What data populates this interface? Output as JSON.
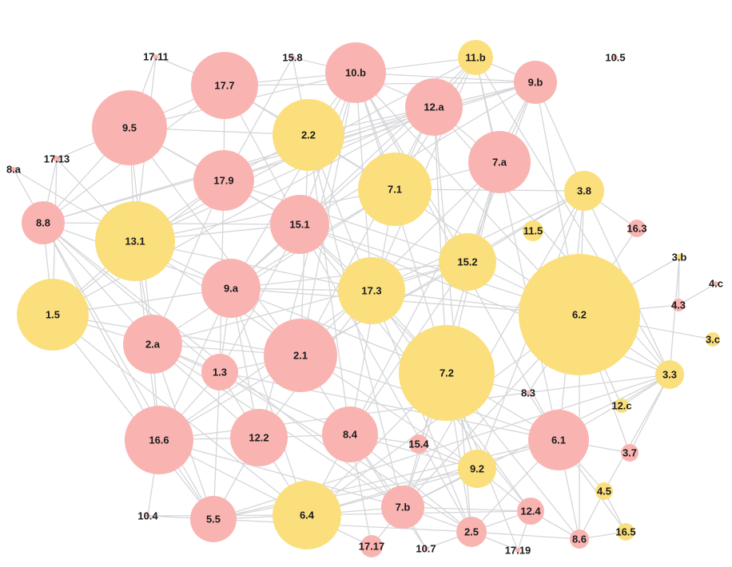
{
  "colors": {
    "pink": "#f9b4b2",
    "yellow": "#fbdf7c",
    "edge": "#d5d6d9",
    "label": "#1b1b1b",
    "background": "#ffffff"
  },
  "nodes": [
    {
      "id": "17.11",
      "group": "pink"
    },
    {
      "id": "15.8",
      "group": "pink"
    },
    {
      "id": "10.b",
      "group": "pink"
    },
    {
      "id": "11.b",
      "group": "yellow"
    },
    {
      "id": "9.b",
      "group": "pink"
    },
    {
      "id": "10.5",
      "group": "pink"
    },
    {
      "id": "17.7",
      "group": "pink"
    },
    {
      "id": "9.5",
      "group": "pink"
    },
    {
      "id": "2.2",
      "group": "yellow"
    },
    {
      "id": "12.a",
      "group": "pink"
    },
    {
      "id": "17.13",
      "group": "pink"
    },
    {
      "id": "8.a",
      "group": "pink"
    },
    {
      "id": "7.a",
      "group": "pink"
    },
    {
      "id": "17.9",
      "group": "pink"
    },
    {
      "id": "7.1",
      "group": "yellow"
    },
    {
      "id": "3.8",
      "group": "yellow"
    },
    {
      "id": "8.8",
      "group": "pink"
    },
    {
      "id": "13.1",
      "group": "yellow"
    },
    {
      "id": "15.1",
      "group": "pink"
    },
    {
      "id": "11.5",
      "group": "yellow"
    },
    {
      "id": "16.3",
      "group": "pink"
    },
    {
      "id": "15.2",
      "group": "yellow"
    },
    {
      "id": "3.b",
      "group": "yellow"
    },
    {
      "id": "4.c",
      "group": "pink"
    },
    {
      "id": "1.5",
      "group": "yellow"
    },
    {
      "id": "9.a",
      "group": "pink"
    },
    {
      "id": "17.3",
      "group": "yellow"
    },
    {
      "id": "6.2",
      "group": "yellow"
    },
    {
      "id": "4.3",
      "group": "pink"
    },
    {
      "id": "3.c",
      "group": "yellow"
    },
    {
      "id": "2.a",
      "group": "pink"
    },
    {
      "id": "2.1",
      "group": "pink"
    },
    {
      "id": "1.3",
      "group": "pink"
    },
    {
      "id": "7.2",
      "group": "yellow"
    },
    {
      "id": "3.3",
      "group": "yellow"
    },
    {
      "id": "8.3",
      "group": "pink"
    },
    {
      "id": "12.c",
      "group": "yellow"
    },
    {
      "id": "16.6",
      "group": "pink"
    },
    {
      "id": "12.2",
      "group": "pink"
    },
    {
      "id": "8.4",
      "group": "pink"
    },
    {
      "id": "15.4",
      "group": "pink"
    },
    {
      "id": "6.1",
      "group": "pink"
    },
    {
      "id": "3.7",
      "group": "pink"
    },
    {
      "id": "9.2",
      "group": "yellow"
    },
    {
      "id": "4.5",
      "group": "yellow"
    },
    {
      "id": "10.4",
      "group": "pink"
    },
    {
      "id": "5.5",
      "group": "pink"
    },
    {
      "id": "6.4",
      "group": "yellow"
    },
    {
      "id": "7.b",
      "group": "pink"
    },
    {
      "id": "12.4",
      "group": "pink"
    },
    {
      "id": "16.5",
      "group": "yellow"
    },
    {
      "id": "17.17",
      "group": "pink"
    },
    {
      "id": "10.7",
      "group": "pink"
    },
    {
      "id": "2.5",
      "group": "pink"
    },
    {
      "id": "17.19",
      "group": "pink"
    },
    {
      "id": "8.6",
      "group": "pink"
    }
  ]
}
